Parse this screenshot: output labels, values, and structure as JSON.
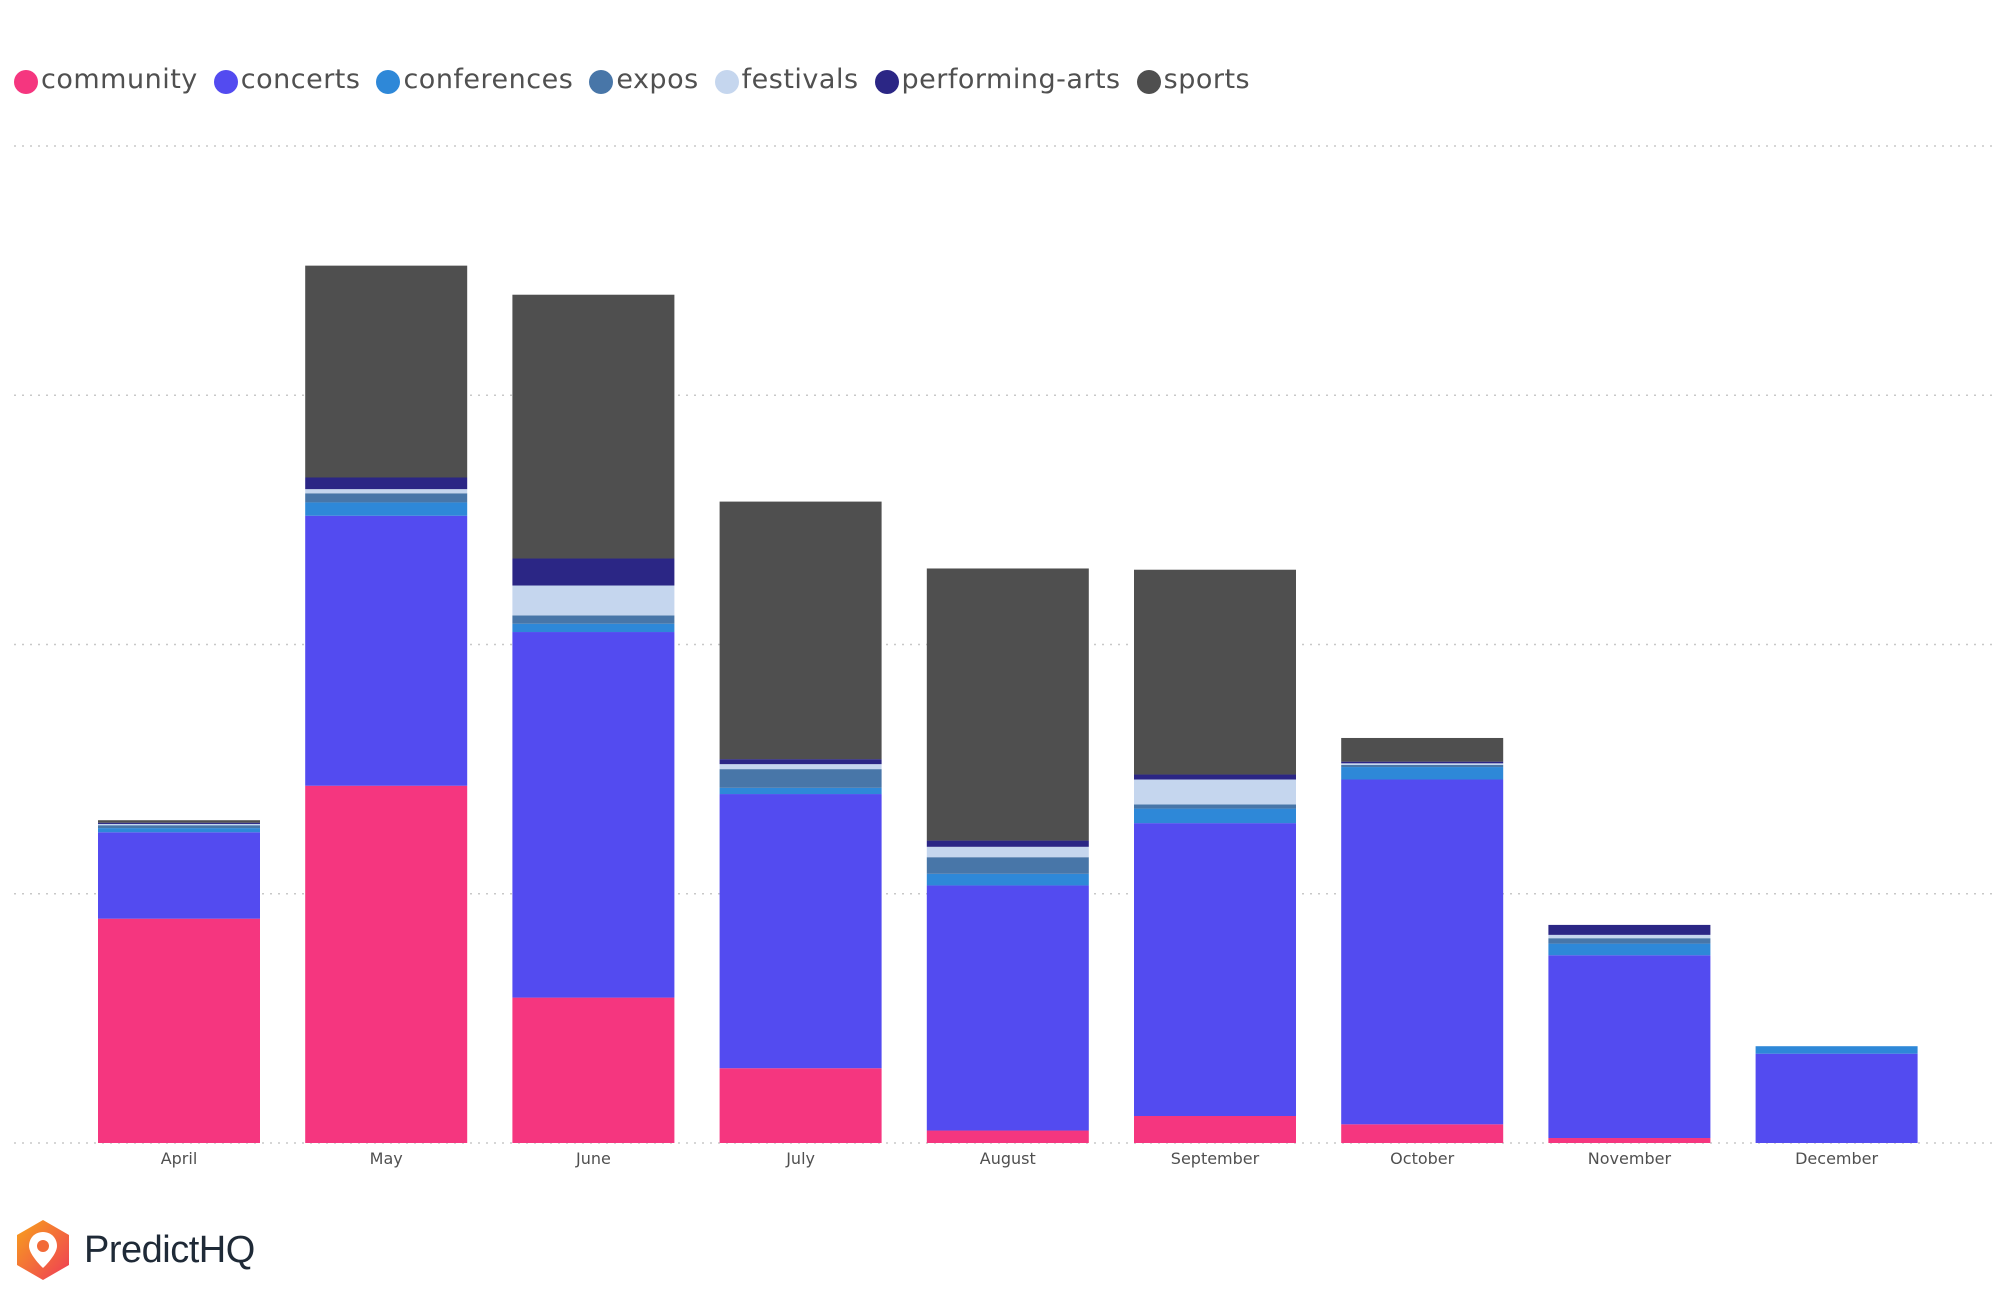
{
  "chart_data": {
    "type": "bar",
    "stacked": true,
    "categories": [
      "April",
      "May",
      "June",
      "July",
      "August",
      "September",
      "October",
      "November",
      "December"
    ],
    "series": [
      {
        "name": "community",
        "color": "#f5367f",
        "values": [
          54,
          86,
          35,
          18,
          3,
          6.5,
          4.5,
          1.2,
          0
        ]
      },
      {
        "name": "concerts",
        "color": "#534bf0",
        "values": [
          20.8,
          65,
          88,
          66,
          59,
          70.5,
          83,
          44,
          21.5
        ]
      },
      {
        "name": "conferences",
        "color": "#2e88d8",
        "values": [
          1,
          3.2,
          2,
          1.5,
          2.8,
          3.5,
          3,
          2.8,
          1.8
        ]
      },
      {
        "name": "expos",
        "color": "#4876a8",
        "values": [
          0.7,
          2.2,
          2,
          4.5,
          4,
          1,
          0.5,
          1.3,
          0
        ]
      },
      {
        "name": "festivals",
        "color": "#c5d6ee",
        "values": [
          0.3,
          1,
          7.2,
          1.2,
          2.5,
          6,
          0.4,
          0.8,
          0
        ]
      },
      {
        "name": "performing-arts",
        "color": "#2b2685",
        "values": [
          0.3,
          2.8,
          6.5,
          1.2,
          1.5,
          1.2,
          0.4,
          2.4,
          0
        ]
      },
      {
        "name": "sports",
        "color": "#4f4f4f",
        "values": [
          0.6,
          51,
          63.5,
          62,
          65.5,
          49.3,
          5.7,
          0,
          0
        ]
      }
    ],
    "ylim": [
      0,
      240
    ],
    "gridlines": [
      0,
      60,
      120,
      180,
      240
    ],
    "grid": true,
    "title": "",
    "xlabel": "",
    "ylabel": "",
    "legend_position": "top-left"
  },
  "brand": {
    "name": "PredictHQ"
  }
}
